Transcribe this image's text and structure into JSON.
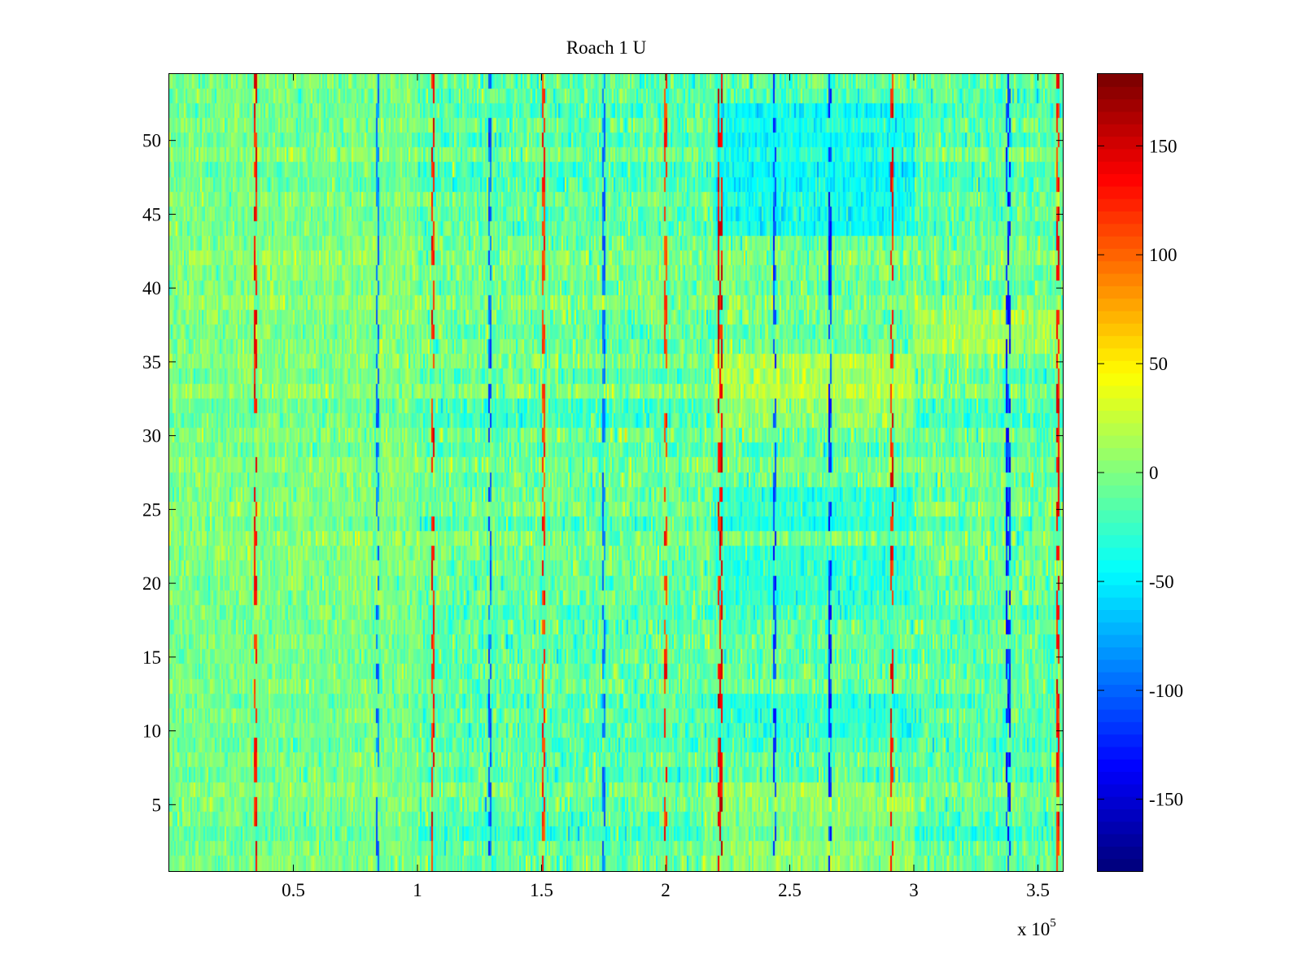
{
  "chart_data": {
    "type": "heatmap",
    "title": "Roach 1 U",
    "xlabel": "",
    "ylabel": "",
    "x_range": [
      0,
      360000
    ],
    "y_range": [
      0.5,
      54.5
    ],
    "n_rows": 54,
    "x_ticks": [
      50000,
      100000,
      150000,
      200000,
      250000,
      300000,
      350000
    ],
    "x_tick_labels": [
      "0.5",
      "1",
      "1.5",
      "2",
      "2.5",
      "3",
      "3.5"
    ],
    "x_multiplier": {
      "base": "x 10",
      "exponent": "5"
    },
    "y_ticks": [
      5,
      10,
      15,
      20,
      25,
      30,
      35,
      40,
      45,
      50
    ],
    "y_tick_labels": [
      "5",
      "10",
      "15",
      "20",
      "25",
      "30",
      "35",
      "40",
      "45",
      "50"
    ],
    "colorbar": {
      "colormap": "jet",
      "range": [
        -183,
        183
      ],
      "ticks": [
        -150,
        -100,
        -50,
        0,
        50,
        100,
        150
      ],
      "tick_labels": [
        "-150",
        "-100",
        "-50",
        "0",
        "50",
        "100",
        "150"
      ]
    },
    "baseline_value": -10,
    "random_spread": 30,
    "spike_columns": [
      {
        "x": 35000,
        "value": 150
      },
      {
        "x": 84000,
        "value": -110
      },
      {
        "x": 106000,
        "value": 150
      },
      {
        "x": 129000,
        "value": -120
      },
      {
        "x": 151000,
        "value": 140
      },
      {
        "x": 175000,
        "value": -110
      },
      {
        "x": 200000,
        "value": 140
      },
      {
        "x": 222000,
        "value": 160
      },
      {
        "x": 244000,
        "value": -130
      },
      {
        "x": 266000,
        "value": -140
      },
      {
        "x": 291000,
        "value": 150
      },
      {
        "x": 338000,
        "value": -140
      },
      {
        "x": 358000,
        "value": 150
      }
    ],
    "regions": [
      {
        "x": [
          0,
          100000
        ],
        "rows": [
          1,
          54
        ],
        "value": 8
      },
      {
        "x": [
          220000,
          300000
        ],
        "rows": [
          44,
          52
        ],
        "value": -55
      },
      {
        "x": [
          220000,
          300000
        ],
        "rows": [
          31,
          35
        ],
        "value": 35
      },
      {
        "x": [
          220000,
          300000
        ],
        "rows": [
          24,
          26
        ],
        "value": -40
      },
      {
        "x": [
          220000,
          300000
        ],
        "rows": [
          19,
          22
        ],
        "value": -40
      },
      {
        "x": [
          220000,
          300000
        ],
        "rows": [
          10,
          12
        ],
        "value": -35
      },
      {
        "x": [
          215000,
          300000
        ],
        "rows": [
          1,
          6
        ],
        "value": 20
      },
      {
        "x": [
          300000,
          360000
        ],
        "rows": [
          36,
          38
        ],
        "value": 30
      }
    ]
  }
}
